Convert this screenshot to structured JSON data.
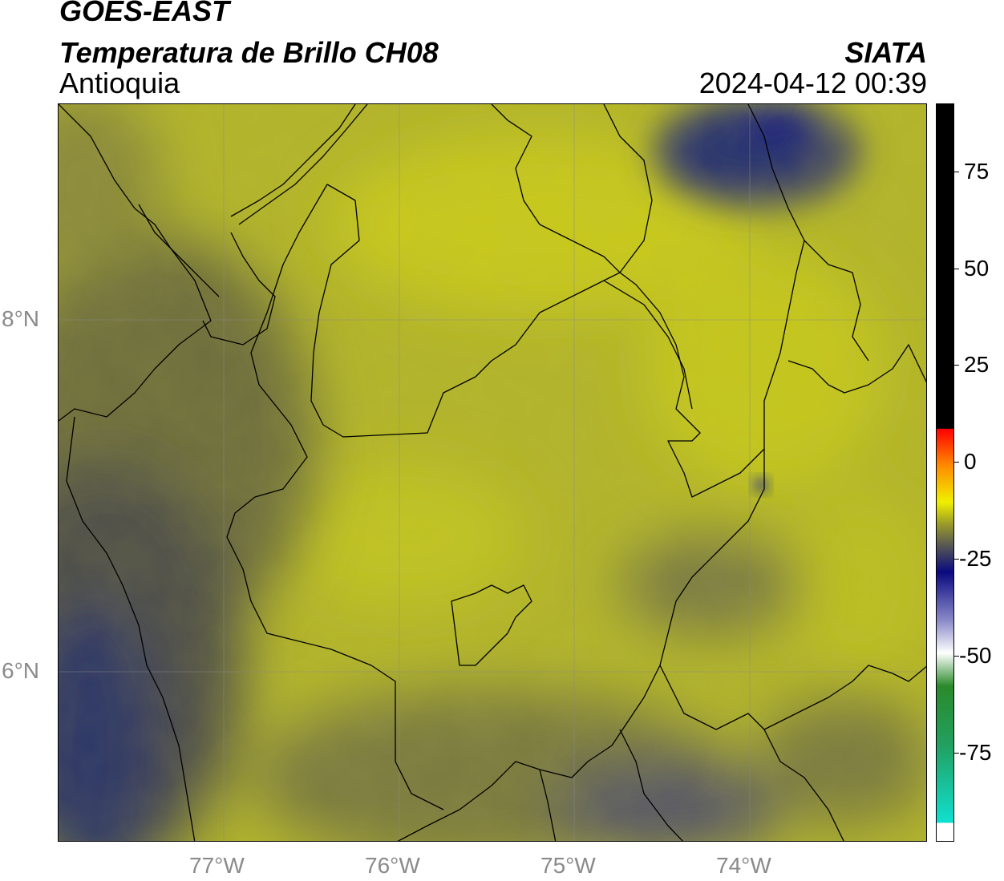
{
  "header": {
    "satellite": "GOES-EAST",
    "product": "Temperatura de Brillo CH08",
    "region": "Antioquia",
    "agency": "SIATA",
    "datetime": "2024-04-12 00:39"
  },
  "map": {
    "lat_labels": [
      "8°N",
      "6°N"
    ],
    "lon_labels": [
      "77°W",
      "76°W",
      "75°W",
      "74°W"
    ],
    "lat_values": [
      8,
      6
    ],
    "lon_values": [
      -77,
      -76,
      -75,
      -74
    ]
  },
  "colorbar": {
    "ticks": [
      "75",
      "50",
      "25",
      "0",
      "-25",
      "-50",
      "-75"
    ],
    "tick_values": [
      75,
      50,
      25,
      0,
      -25,
      -50,
      -75
    ],
    "range": [
      -92,
      92
    ],
    "colors": {
      "cyan": "#10e0d0",
      "green": "#2a8a2a",
      "white": "#ffffff",
      "navy": "#0a0a80",
      "olive": "#777744",
      "yellow": "#f0f000",
      "orange": "#ff8a00",
      "red": "#ff0000",
      "black": "#000000"
    }
  }
}
